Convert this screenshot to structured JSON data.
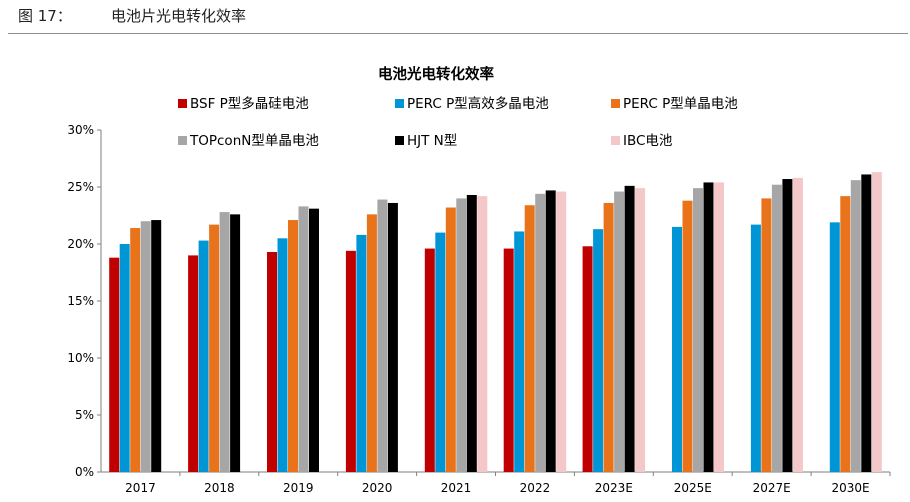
{
  "header": {
    "figure_label": "图 17：",
    "figure_title": "电池片光电转化效率"
  },
  "chart_data": {
    "type": "bar",
    "title": "电池光电转化效率",
    "xlabel": "",
    "ylabel": "",
    "ylim": [
      0,
      30
    ],
    "y_ticks": [
      "0%",
      "5%",
      "10%",
      "15%",
      "20%",
      "25%",
      "30%"
    ],
    "grid": false,
    "legend_position": "top",
    "categories": [
      "2017",
      "2018",
      "2019",
      "2020",
      "2021",
      "2022",
      "2023E",
      "2025E",
      "2027E",
      "2030E"
    ],
    "series": [
      {
        "name": "BSF P型多晶硅电池",
        "color": "#c00000",
        "values": [
          18.8,
          19.0,
          19.3,
          19.4,
          19.6,
          19.6,
          19.8,
          null,
          null,
          null
        ]
      },
      {
        "name": "PERC P型高效多晶电池",
        "color": "#0096d6",
        "values": [
          20.0,
          20.3,
          20.5,
          20.8,
          21.0,
          21.1,
          21.3,
          21.5,
          21.7,
          21.9
        ]
      },
      {
        "name": "PERC P型单晶电池",
        "color": "#e8731a",
        "values": [
          21.4,
          21.7,
          22.1,
          22.6,
          23.2,
          23.4,
          23.6,
          23.8,
          24.0,
          24.2
        ]
      },
      {
        "name": "TOPconN型单晶电池",
        "color": "#a6a6a6",
        "values": [
          22.0,
          22.8,
          23.3,
          23.9,
          24.0,
          24.4,
          24.6,
          24.9,
          25.2,
          25.6
        ]
      },
      {
        "name": "HJT N型",
        "color": "#000000",
        "values": [
          22.1,
          22.6,
          23.1,
          23.6,
          24.3,
          24.7,
          25.1,
          25.4,
          25.7,
          26.1
        ]
      },
      {
        "name": "IBC电池",
        "color": "#f4c7c9",
        "values": [
          null,
          null,
          null,
          null,
          24.2,
          24.6,
          24.9,
          25.4,
          25.8,
          26.3
        ]
      }
    ]
  }
}
